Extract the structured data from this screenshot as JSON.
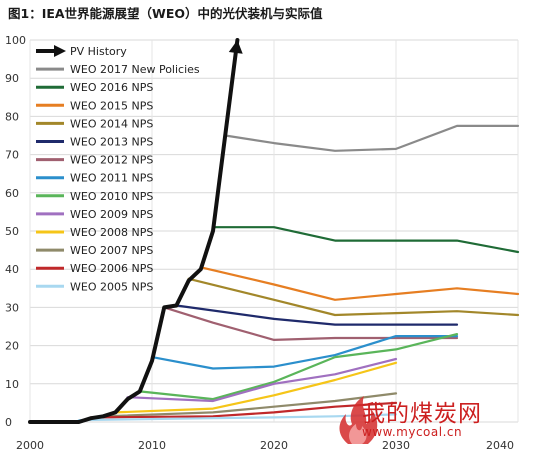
{
  "chart_data": {
    "type": "line",
    "title": "图1：IEA世界能源展望（WEO）中的光伏装机与实际值",
    "xlabel": "",
    "ylabel": "",
    "xlim": [
      2000,
      2040
    ],
    "ylim": [
      0,
      100
    ],
    "x_ticks": [
      2000,
      2010,
      2020,
      2030,
      2040
    ],
    "y_ticks": [
      0,
      10,
      20,
      30,
      40,
      50,
      60,
      70,
      80,
      90,
      100
    ],
    "grid": true,
    "legend_position": "top-left",
    "series": [
      {
        "name": "PV History",
        "color": "#111111",
        "arrow": true,
        "points": [
          [
            2000,
            0
          ],
          [
            2004,
            0
          ],
          [
            2005,
            1
          ],
          [
            2006,
            1.5
          ],
          [
            2007,
            2.5
          ],
          [
            2008,
            6
          ],
          [
            2009,
            8
          ],
          [
            2010,
            16
          ],
          [
            2011,
            30
          ],
          [
            2012,
            30.5
          ],
          [
            2013,
            37
          ],
          [
            2014,
            40
          ],
          [
            2015,
            50
          ],
          [
            2016,
            75
          ],
          [
            2017,
            100
          ]
        ]
      },
      {
        "name": "WEO 2017 New Policies",
        "color": "#8a8a8a",
        "points": [
          [
            2016,
            75
          ],
          [
            2020,
            73
          ],
          [
            2025,
            71
          ],
          [
            2030,
            71.5
          ],
          [
            2035,
            77.5
          ],
          [
            2040,
            77.5
          ]
        ]
      },
      {
        "name": "WEO 2016 NPS",
        "color": "#1f6b36",
        "points": [
          [
            2015,
            51
          ],
          [
            2020,
            51
          ],
          [
            2025,
            47.5
          ],
          [
            2030,
            47.5
          ],
          [
            2035,
            47.5
          ],
          [
            2040,
            44.5
          ]
        ]
      },
      {
        "name": "WEO 2015 NPS",
        "color": "#e67e22",
        "points": [
          [
            2014,
            40.5
          ],
          [
            2020,
            36
          ],
          [
            2025,
            32
          ],
          [
            2030,
            33.5
          ],
          [
            2035,
            35
          ],
          [
            2040,
            33.5
          ]
        ]
      },
      {
        "name": "WEO 2014 NPS",
        "color": "#a2872a",
        "points": [
          [
            2013,
            37.5
          ],
          [
            2020,
            32
          ],
          [
            2025,
            28
          ],
          [
            2030,
            28.5
          ],
          [
            2035,
            29
          ],
          [
            2040,
            28
          ]
        ]
      },
      {
        "name": "WEO 2013 NPS",
        "color": "#1f2a6b",
        "points": [
          [
            2012,
            30.5
          ],
          [
            2020,
            27
          ],
          [
            2025,
            25.5
          ],
          [
            2030,
            25.5
          ],
          [
            2035,
            25.5
          ]
        ]
      },
      {
        "name": "WEO 2012 NPS",
        "color": "#a06070",
        "points": [
          [
            2011,
            30
          ],
          [
            2015,
            26
          ],
          [
            2020,
            21.5
          ],
          [
            2025,
            22
          ],
          [
            2030,
            22
          ],
          [
            2035,
            22
          ]
        ]
      },
      {
        "name": "WEO 2011 NPS",
        "color": "#2b8fcc",
        "points": [
          [
            2010,
            17
          ],
          [
            2015,
            14
          ],
          [
            2020,
            14.5
          ],
          [
            2025,
            17.5
          ],
          [
            2030,
            22.5
          ],
          [
            2035,
            22.5
          ]
        ]
      },
      {
        "name": "WEO 2010 NPS",
        "color": "#5ab55a",
        "points": [
          [
            2009,
            8
          ],
          [
            2015,
            6
          ],
          [
            2020,
            10.5
          ],
          [
            2025,
            17
          ],
          [
            2030,
            19
          ],
          [
            2035,
            23
          ]
        ]
      },
      {
        "name": "WEO 2009 NPS",
        "color": "#a070c0",
        "points": [
          [
            2008,
            6.5
          ],
          [
            2015,
            5.5
          ],
          [
            2020,
            10
          ],
          [
            2025,
            12.5
          ],
          [
            2030,
            16.5
          ]
        ]
      },
      {
        "name": "WEO 2008 NPS",
        "color": "#f5c518",
        "points": [
          [
            2007,
            2.5
          ],
          [
            2015,
            3.5
          ],
          [
            2020,
            7
          ],
          [
            2025,
            11
          ],
          [
            2030,
            15.5
          ]
        ]
      },
      {
        "name": "WEO 2007 NPS",
        "color": "#8f8a6a",
        "points": [
          [
            2006,
            1.5
          ],
          [
            2015,
            2.5
          ],
          [
            2020,
            4
          ],
          [
            2025,
            5.5
          ],
          [
            2030,
            7.5
          ]
        ]
      },
      {
        "name": "WEO 2006 NPS",
        "color": "#c0282a",
        "points": [
          [
            2005,
            1.2
          ],
          [
            2015,
            1.5
          ],
          [
            2020,
            2.5
          ],
          [
            2025,
            4
          ],
          [
            2030,
            5
          ]
        ]
      },
      {
        "name": "WEO 2005 NPS",
        "color": "#a8d8f0",
        "points": [
          [
            2004,
            0.5
          ],
          [
            2015,
            1
          ],
          [
            2020,
            1.2
          ],
          [
            2025,
            1.5
          ],
          [
            2030,
            2
          ]
        ]
      }
    ]
  },
  "watermark": {
    "text_cn": "我的煤炭网",
    "text_url": "www.mycoal.cn",
    "colors": {
      "flame": "#d42a2a",
      "text": "#cc2020"
    }
  }
}
